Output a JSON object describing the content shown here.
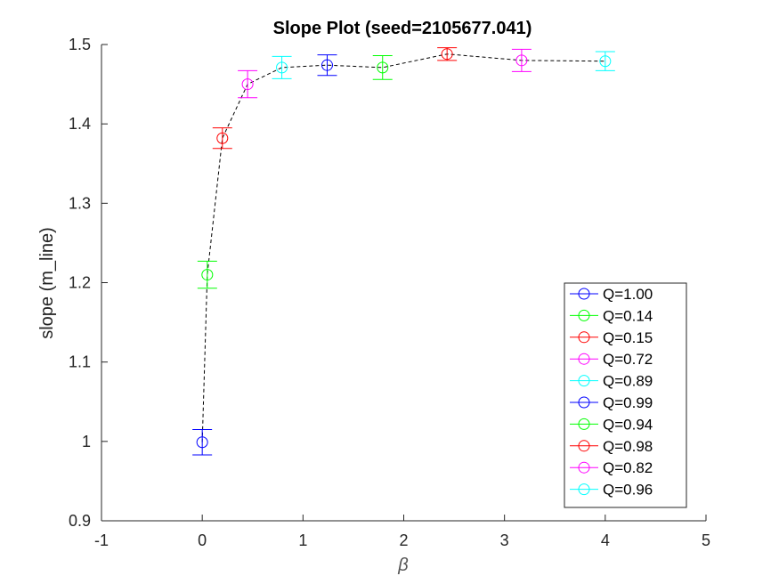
{
  "chart_data": {
    "type": "scatter",
    "title": "Slope Plot   (seed=2105677.041)",
    "xlabel": "β",
    "ylabel": "slope (m_line)",
    "xlim": [
      -1,
      5
    ],
    "ylim": [
      0.9,
      1.5
    ],
    "xticks": [
      "-1",
      "0",
      "1",
      "2",
      "3",
      "4",
      "5"
    ],
    "xtick_values": [
      -1,
      0,
      1,
      2,
      3,
      4,
      5
    ],
    "yticks": [
      "0.9",
      "1",
      "1.1",
      "1.2",
      "1.3",
      "1.4",
      "1.5"
    ],
    "ytick_values": [
      0.9,
      1.0,
      1.1,
      1.2,
      1.3,
      1.4,
      1.5
    ],
    "grid": false,
    "legend_position": "bottom-right",
    "connector": {
      "style": "dashed",
      "color": "#000000"
    },
    "series": [
      {
        "name": "Q=1.00",
        "color": "#0000ff",
        "x": 0.0,
        "y": 0.999,
        "err": 0.016
      },
      {
        "name": "Q=0.14",
        "color": "#00ff00",
        "x": 0.05,
        "y": 1.21,
        "err": 0.017
      },
      {
        "name": "Q=0.15",
        "color": "#ff0000",
        "x": 0.2,
        "y": 1.382,
        "err": 0.013
      },
      {
        "name": "Q=0.72",
        "color": "#ff00ff",
        "x": 0.45,
        "y": 1.45,
        "err": 0.017
      },
      {
        "name": "Q=0.89",
        "color": "#00ffff",
        "x": 0.79,
        "y": 1.471,
        "err": 0.014
      },
      {
        "name": "Q=0.99",
        "color": "#0000ff",
        "x": 1.24,
        "y": 1.474,
        "err": 0.013
      },
      {
        "name": "Q=0.94",
        "color": "#00ff00",
        "x": 1.79,
        "y": 1.471,
        "err": 0.015
      },
      {
        "name": "Q=0.98",
        "color": "#ff0000",
        "x": 2.43,
        "y": 1.488,
        "err": 0.008
      },
      {
        "name": "Q=0.82",
        "color": "#ff00ff",
        "x": 3.17,
        "y": 1.48,
        "err": 0.014
      },
      {
        "name": "Q=0.96",
        "color": "#00ffff",
        "x": 4.0,
        "y": 1.479,
        "err": 0.012
      }
    ]
  }
}
